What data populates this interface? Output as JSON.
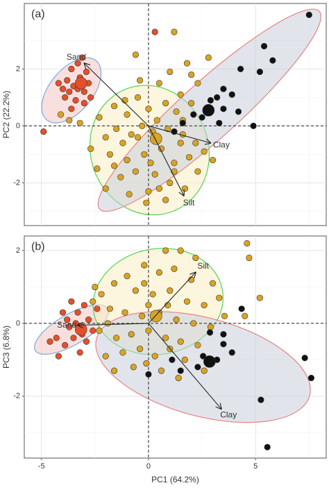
{
  "chart_data": [
    {
      "type": "scatter",
      "title": "(a)",
      "ylabel": "PC2 (22.2%)",
      "xlim": [
        -5.8,
        8.3
      ],
      "ylim": [
        -3.5,
        4.3
      ],
      "xgrid": [
        -5,
        0,
        5
      ],
      "yticks": [
        -2,
        0,
        2
      ],
      "grid": true,
      "hline": 0,
      "vline": 0,
      "ellipses": [
        {
          "cx": -3.6,
          "cy": 1.25,
          "rx": 1.8,
          "ry": 0.75,
          "angle": -50,
          "fill": "#f4c6c2",
          "stroke": "#7fb0e0"
        },
        {
          "cx": 0.05,
          "cy": -0.85,
          "rx": 2.75,
          "ry": 2.3,
          "angle": -20,
          "fill": "#fbefc4",
          "stroke": "#5fd35f"
        },
        {
          "cx": 2.85,
          "cy": 0.55,
          "rx": 6.9,
          "ry": 1.0,
          "angle": -42,
          "fill": "#c9d0da",
          "stroke": "#e88a8a"
        }
      ],
      "series": [
        {
          "color": "#e4502a",
          "x": [
            -3.6,
            -3.3,
            -3.8,
            -4.0,
            -3.5,
            -3.9,
            -3.4,
            -3.0,
            -2.8,
            -3.2,
            -3.7,
            -4.2,
            -3.0,
            -2.7,
            -3.6,
            -3.3,
            -2.9,
            -4.9,
            0.3,
            -3.1
          ],
          "values": [
            2.0,
            2.2,
            1.6,
            1.3,
            1.4,
            1.0,
            0.9,
            1.2,
            1.5,
            1.7,
            1.2,
            1.5,
            0.8,
            1.0,
            0.6,
            1.3,
            1.9,
            -0.2,
            3.3,
            2.4
          ]
        },
        {
          "color": "#d9a424",
          "x": [
            1.2,
            1.8,
            -0.6,
            2.0,
            2.8,
            2.3,
            0.5,
            1.5,
            -0.5,
            -1.6,
            -2.3,
            -1.0,
            0.0,
            0.8,
            1.3,
            2.0,
            -0.3,
            -1.5,
            -2.0,
            -2.7,
            -1.2,
            -0.5,
            0.2,
            0.9,
            1.6,
            2.2,
            2.6,
            3.0,
            -1.8,
            -1.0,
            -0.2,
            0.6,
            1.2,
            1.9,
            -2.4,
            -1.3,
            -0.6,
            0.3,
            1.0,
            1.7,
            -2.0,
            -0.9,
            0.0,
            0.8,
            -0.1,
            1.2,
            -3.7,
            -3.2,
            -4.1,
            0.4,
            -0.8,
            1.5,
            0.1,
            -1.6,
            2.3,
            0.5,
            -0.4,
            1.0,
            1.6,
            -1.1
          ],
          "values": [
            3.3,
            2.2,
            2.5,
            1.8,
            2.4,
            1.5,
            1.5,
            1.1,
            1.0,
            0.7,
            0.3,
            0.4,
            0.6,
            0.8,
            0.5,
            0.8,
            0.0,
            -0.1,
            -0.4,
            -0.8,
            -0.6,
            -0.4,
            -0.2,
            -0.1,
            -0.3,
            -0.6,
            -0.9,
            -1.2,
            -1.0,
            -1.2,
            -1.0,
            -0.8,
            -1.3,
            -1.1,
            -1.5,
            -1.8,
            -1.6,
            -1.7,
            -2.0,
            -2.2,
            -2.2,
            -2.4,
            -2.3,
            -2.6,
            -2.7,
            -1.6,
            0.2,
            0.1,
            0.4,
            0.2,
            -0.3,
            -0.6,
            -1.3,
            -1.4,
            -1.6,
            -2.2,
            1.6,
            1.9,
            0.2,
            0.9
          ]
        },
        {
          "color": "#111111",
          "x": [
            7.5,
            5.4,
            5.8,
            4.3,
            5.2,
            3.5,
            3.9,
            3.2,
            2.9,
            3.5,
            4.2,
            2.5,
            3.3,
            4.9,
            2.1,
            1.6,
            1.2
          ],
          "values": [
            3.9,
            2.8,
            2.3,
            2.0,
            1.9,
            1.3,
            1.1,
            1.0,
            0.9,
            0.6,
            0.5,
            0.3,
            0.1,
            0.0,
            0.4,
            0.1,
            -0.2
          ]
        }
      ],
      "centroids": [
        {
          "x": -3.15,
          "y": 1.5,
          "color": "#e4502a"
        },
        {
          "x": 0.35,
          "y": -0.45,
          "color": "#d9a424"
        },
        {
          "x": 2.8,
          "y": 0.55,
          "color": "#111111"
        }
      ],
      "arrows": [
        {
          "label": "Sand",
          "x": -3.0,
          "y": 2.2
        },
        {
          "label": "Clay",
          "x": 2.9,
          "y": -0.6
        },
        {
          "label": "Silt",
          "x": 1.65,
          "y": -2.45
        }
      ]
    },
    {
      "type": "scatter",
      "title": "(b)",
      "xlabel": "PC1 (64.2%)",
      "ylabel": "PC3 (6.8%)",
      "xlim": [
        -5.8,
        8.3
      ],
      "ylim": [
        -3.7,
        2.4
      ],
      "xticks": [
        -5,
        0,
        5
      ],
      "yticks": [
        -2,
        0,
        2
      ],
      "grid": true,
      "hline": 0,
      "vline": 0,
      "ellipses": [
        {
          "cx": -3.6,
          "cy": -0.17,
          "rx": 1.95,
          "ry": 0.42,
          "angle": -30,
          "fill": "#f4c6c2",
          "stroke": "#7fb0e0"
        },
        {
          "cx": 0.45,
          "cy": 0.6,
          "rx": 3.05,
          "ry": 1.45,
          "angle": -10,
          "fill": "#fbefc4",
          "stroke": "#5fd35f"
        },
        {
          "cx": 2.55,
          "cy": -1.2,
          "rx": 5.15,
          "ry": 1.35,
          "angle": 15,
          "fill": "#c9d0da",
          "stroke": "#e88a8a"
        }
      ],
      "series": [
        {
          "color": "#e4502a",
          "x": [
            -3.6,
            -3.0,
            -4.0,
            -3.7,
            -3.4,
            -4.3,
            -3.9,
            -3.5,
            -3.1,
            -2.8,
            -2.6,
            -4.2,
            -3.2,
            -3.8,
            -2.9,
            -4.6,
            -3.3,
            -2.4
          ],
          "values": [
            0.6,
            0.5,
            0.3,
            -0.1,
            0.0,
            -0.4,
            -0.6,
            -0.4,
            -0.3,
            0.1,
            -0.2,
            -0.9,
            -0.8,
            0.1,
            -0.5,
            -0.5,
            0.3,
            0.4
          ]
        },
        {
          "color": "#d9a424",
          "x": [
            4.6,
            4.7,
            5.2,
            3.55,
            4.5,
            0.8,
            1.5,
            2.2,
            -0.2,
            0.5,
            1.2,
            2.0,
            3.0,
            -1.0,
            -1.6,
            -2.2,
            -0.6,
            0.2,
            1.0,
            1.8,
            2.6,
            3.3,
            -2.6,
            -1.8,
            -1.1,
            -0.3,
            0.5,
            1.3,
            2.1,
            2.9,
            -2.3,
            -1.5,
            -0.8,
            0.0,
            0.8,
            1.5,
            2.3,
            -2.0,
            -1.2,
            -0.4,
            0.3,
            1.0,
            1.7,
            -1.6,
            -0.7,
            0.6,
            1.4,
            -0.1,
            -2.5,
            -1.9,
            0.9,
            -0.2,
            2.6,
            0.0
          ],
          "values": [
            2.2,
            1.8,
            0.7,
            0.2,
            0.2,
            2.0,
            2.0,
            1.8,
            1.6,
            1.4,
            1.5,
            1.2,
            1.1,
            1.3,
            1.1,
            0.8,
            0.9,
            0.8,
            0.9,
            0.6,
            0.5,
            0.7,
            0.6,
            0.4,
            0.3,
            0.2,
            0.3,
            0.1,
            0.0,
            -0.1,
            -0.2,
            -0.4,
            -0.3,
            -0.2,
            -0.4,
            -0.5,
            -0.6,
            -0.9,
            -0.8,
            -0.7,
            -0.9,
            -0.7,
            -1.0,
            -1.3,
            -1.2,
            -1.3,
            -1.5,
            -1.1,
            1.0,
            0.0,
            0.5,
            1.1,
            -1.3,
            0.5
          ]
        },
        {
          "color": "#111111",
          "x": [
            7.3,
            7.6,
            5.25,
            5.55,
            4.35,
            3.5,
            3.5,
            3.2,
            2.55,
            1.1,
            0.0,
            2.87,
            3.9,
            2.3,
            1.5
          ],
          "values": [
            -0.95,
            -1.5,
            -2.1,
            -3.4,
            0.4,
            -0.3,
            -0.57,
            -1.0,
            -0.9,
            -1.0,
            -1.4,
            -0.25,
            -0.8,
            -1.2,
            -1.3
          ]
        }
      ],
      "centroids": [
        {
          "x": -3.15,
          "y": -0.17,
          "color": "#e4502a"
        },
        {
          "x": 0.35,
          "y": 0.2,
          "color": "#d9a424"
        },
        {
          "x": 2.85,
          "y": -1.05,
          "color": "#111111"
        }
      ],
      "arrows": [
        {
          "label": "Sand",
          "x": -3.3,
          "y": -0.05
        },
        {
          "label": "Silt",
          "x": 2.2,
          "y": 1.4
        },
        {
          "label": "Clay",
          "x": 3.4,
          "y": -2.35
        }
      ]
    }
  ]
}
